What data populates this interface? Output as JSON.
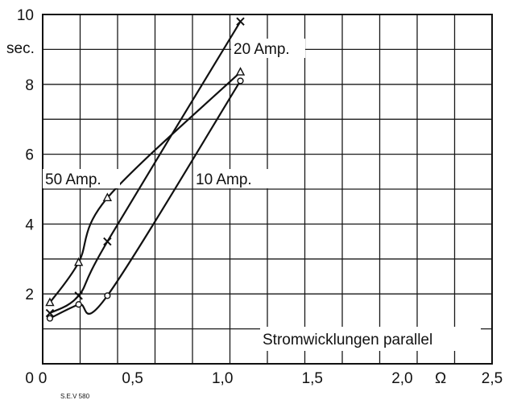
{
  "chart_data": {
    "type": "line",
    "title": "",
    "xlabel": "",
    "ylabel": "sec.",
    "x_unit": "Ω",
    "xlim": [
      0,
      2.5
    ],
    "ylim": [
      0,
      10
    ],
    "x_tick_labels": [
      {
        "value": 0,
        "label": "0"
      },
      {
        "value": 0.5,
        "label": "0,5"
      },
      {
        "value": 1.0,
        "label": "1,0"
      },
      {
        "value": 1.5,
        "label": "1,5"
      },
      {
        "value": 2.0,
        "label": "2,0"
      },
      {
        "value": 2.5,
        "label": "2,5"
      }
    ],
    "y_tick_labels": [
      {
        "value": 2,
        "label": "2"
      },
      {
        "value": 4,
        "label": "4"
      },
      {
        "value": 6,
        "label": "6"
      },
      {
        "value": 8,
        "label": "8"
      },
      {
        "value": 10,
        "label": "10"
      }
    ],
    "grid": true,
    "series": [
      {
        "name": "10 Amp.",
        "marker": "circle",
        "x": [
          0.04,
          0.2,
          0.36,
          1.1
        ],
        "y": [
          1.3,
          1.7,
          1.95,
          8.1
        ]
      },
      {
        "name": "20 Amp.",
        "marker": "cross",
        "x": [
          0.04,
          0.2,
          0.36,
          1.1
        ],
        "y": [
          1.45,
          1.95,
          3.5,
          9.8
        ]
      },
      {
        "name": "50 Amp.",
        "marker": "triangle",
        "x": [
          0.04,
          0.2,
          0.36,
          1.1
        ],
        "y": [
          1.75,
          2.9,
          4.75,
          8.35
        ]
      }
    ],
    "annotations": [
      "Stromwicklungen parallel",
      "S.E.V 580"
    ]
  }
}
